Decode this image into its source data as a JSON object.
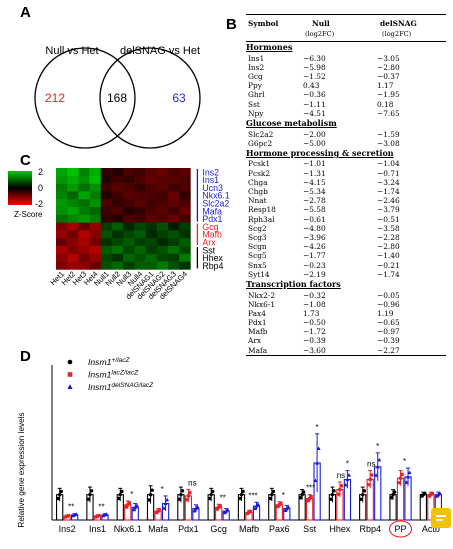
{
  "panels": {
    "a": "A",
    "b": "B",
    "c": "C",
    "d": "D"
  },
  "venn": {
    "left_title": "Null vs Het",
    "right_title": "delSNAG vs Het",
    "left_only": "212",
    "overlap": "168",
    "right_only": "63",
    "colors": {
      "left_only": "#e8212a",
      "overlap": "#000000",
      "right_only": "#2b2bd6"
    }
  },
  "heatmap": {
    "scale": {
      "title": "Z-Score",
      "ticks": [
        "2",
        "0",
        "-2"
      ]
    },
    "columns": [
      "Het1",
      "Het2",
      "Het3",
      "Het4",
      "Null1",
      "Null2",
      "Null3",
      "Null4",
      "delSNAG1",
      "delSNAG2",
      "delSNAG3",
      "delSNAG4"
    ],
    "genes": [
      {
        "name": "Ins2",
        "color": "#1a1ad6"
      },
      {
        "name": "Ins1",
        "color": "#1a1ad6"
      },
      {
        "name": "Ucn3",
        "color": "#1a1ad6"
      },
      {
        "name": "Nkx6.1",
        "color": "#1a1ad6"
      },
      {
        "name": "Slc2a2",
        "color": "#1a1ad6"
      },
      {
        "name": "Mafa",
        "color": "#1a1ad6"
      },
      {
        "name": "Pdx1",
        "color": "#1a1ad6"
      },
      {
        "name": "Gcg",
        "color": "#e8212a"
      },
      {
        "name": "Mafb",
        "color": "#e8212a"
      },
      {
        "name": "Arx",
        "color": "#e8212a"
      },
      {
        "name": "Sst",
        "color": "#000000"
      },
      {
        "name": "Hhex",
        "color": "#000000"
      },
      {
        "name": "Rbp4",
        "color": "#000000"
      }
    ],
    "groups": [
      {
        "from": 0,
        "to": 6,
        "color": "#1a1ad6"
      },
      {
        "from": 7,
        "to": 9,
        "color": "#e8212a"
      },
      {
        "from": 10,
        "to": 12,
        "color": "#000000"
      }
    ],
    "values": [
      [
        1.6,
        1.9,
        1.3,
        1.7,
        -0.4,
        -0.3,
        -0.6,
        -0.5,
        -0.7,
        -0.8,
        -0.6,
        -0.7
      ],
      [
        1.5,
        1.7,
        1.4,
        1.8,
        -0.3,
        -0.5,
        -0.4,
        -0.6,
        -0.8,
        -0.7,
        -0.7,
        -0.6
      ],
      [
        1.2,
        1.5,
        1.1,
        1.4,
        -0.5,
        -0.7,
        -0.6,
        -0.4,
        -0.6,
        -0.7,
        -0.5,
        -0.6
      ],
      [
        1.3,
        1.0,
        1.6,
        1.2,
        -0.3,
        -0.5,
        -0.7,
        -0.6,
        -0.6,
        -0.5,
        -0.8,
        -0.4
      ],
      [
        1.5,
        1.3,
        1.1,
        1.4,
        -0.6,
        -0.4,
        -0.5,
        -0.7,
        -0.5,
        -0.6,
        -0.7,
        -0.6
      ],
      [
        1.4,
        1.6,
        1.2,
        1.0,
        -0.5,
        -0.6,
        -0.3,
        -0.4,
        -0.6,
        -0.7,
        -0.5,
        -0.8
      ],
      [
        1.1,
        1.3,
        1.5,
        1.2,
        -0.4,
        -0.3,
        -0.6,
        -0.5,
        -0.7,
        -0.6,
        -0.8,
        -0.5
      ],
      [
        -1.0,
        -1.3,
        -0.8,
        -1.2,
        0.6,
        0.9,
        0.4,
        0.7,
        0.5,
        0.8,
        0.3,
        0.6
      ],
      [
        -1.2,
        -0.9,
        -1.4,
        -1.0,
        0.8,
        0.5,
        0.7,
        0.9,
        0.4,
        0.6,
        0.8,
        0.5
      ],
      [
        -0.8,
        -1.1,
        -1.3,
        -0.9,
        0.5,
        0.7,
        0.9,
        0.6,
        0.7,
        0.4,
        0.6,
        0.9
      ],
      [
        -1.3,
        -1.0,
        -1.2,
        -1.4,
        0.9,
        1.1,
        0.7,
        1.0,
        0.6,
        0.8,
        1.1,
        0.7
      ],
      [
        -1.1,
        -1.4,
        -0.9,
        -1.2,
        0.7,
        0.5,
        1.0,
        0.8,
        1.0,
        0.7,
        0.6,
        1.2
      ],
      [
        -1.0,
        -1.2,
        -1.1,
        -0.8,
        0.8,
        1.0,
        0.6,
        0.9,
        0.9,
        1.2,
        0.8,
        0.5
      ]
    ]
  },
  "table": {
    "headers": {
      "symbol": "Symbol",
      "null": "Null",
      "null_sub": "(log2FC)",
      "del": "delSNAG",
      "del_sub": "(log2FC)"
    },
    "sections": [
      {
        "title": "Hormones",
        "rows": [
          {
            "symbol": "Ins1",
            "null": "−6.30",
            "del": "−3.05"
          },
          {
            "symbol": "Ins2",
            "null": "−5.98",
            "del": "−2.80"
          },
          {
            "symbol": "Gcg",
            "null": "−1.52",
            "del": "−0.37"
          },
          {
            "symbol": "Ppy",
            "null": "0.43",
            "del": "1.17"
          },
          {
            "symbol": "Ghrl",
            "null": "−0.36",
            "del": "−1.95"
          },
          {
            "symbol": "Sst",
            "null": "−1.11",
            "del": "0.18"
          },
          {
            "symbol": "Npy",
            "null": "−4.51",
            "del": "−7.65"
          }
        ]
      },
      {
        "title": "Glucose metabolism",
        "rows": [
          {
            "symbol": "Slc2a2",
            "null": "−2.00",
            "del": "−1.59"
          },
          {
            "symbol": "G6pc2",
            "null": "−5.00",
            "del": "−3.08"
          }
        ]
      },
      {
        "title": "Hormone processing & secretion",
        "rows": [
          {
            "symbol": "Pcsk1",
            "null": "−1.01",
            "del": "−1.04"
          },
          {
            "symbol": "Pcsk2",
            "null": "−1.31",
            "del": "−0.71"
          },
          {
            "symbol": "Chga",
            "null": "−4.15",
            "del": "−3.24"
          },
          {
            "symbol": "Chgb",
            "null": "−5.34",
            "del": "−1.74"
          },
          {
            "symbol": "Nnat",
            "null": "−2.78",
            "del": "−2.46"
          },
          {
            "symbol": "Resp18",
            "null": "−5.58",
            "del": "−3.79"
          },
          {
            "symbol": "Rph3al",
            "null": "−0.61",
            "del": "−0.51"
          },
          {
            "symbol": "Scg2",
            "null": "−4.80",
            "del": "−3.58"
          },
          {
            "symbol": "Scg3",
            "null": "−3.96",
            "del": "−2.28"
          },
          {
            "symbol": "Scgn",
            "null": "−4.26",
            "del": "−2.80"
          },
          {
            "symbol": "Scg5",
            "null": "−1.77",
            "del": "−1.40"
          },
          {
            "symbol": "Snx5",
            "null": "−0.23",
            "del": "−0.21"
          },
          {
            "symbol": "Syt14",
            "null": "−2.19",
            "del": "−1.74"
          }
        ]
      },
      {
        "title": "Transcription factors",
        "rows": [
          {
            "symbol": "Nkx2-2",
            "null": "−0.32",
            "del": "−0.05"
          },
          {
            "symbol": "Nkx6-1",
            "null": "−1.08",
            "del": "−0.96"
          },
          {
            "symbol": "Pax4",
            "null": "1.73",
            "del": "1.19"
          },
          {
            "symbol": "Pdx1",
            "null": "−0.50",
            "del": "−0.65"
          },
          {
            "symbol": "Mafb",
            "null": "−1.72",
            "del": "−0.97"
          },
          {
            "symbol": "Arx",
            "null": "−0.39",
            "del": "−0.39"
          },
          {
            "symbol": "Mafa",
            "null": "−3.60",
            "del": "−2.27"
          }
        ]
      }
    ]
  },
  "chart_data": {
    "type": "bar",
    "title": "",
    "xlabel": "",
    "ylabel": "Relative gene expression levels",
    "ylim": [
      0,
      6
    ],
    "categories": [
      "Ins2",
      "Ins1",
      "Nkx6.1",
      "Mafa",
      "Pdx1",
      "Gcg",
      "Mafb",
      "Pax6",
      "Sst",
      "Hhex",
      "Rbp4",
      "PP",
      "Actb"
    ],
    "highlight_category": "PP",
    "colors": [
      "#000000",
      "#e8212a",
      "#1a1ad6"
    ],
    "legend": [
      {
        "base": "Insm1",
        "sup": "+/lacZ"
      },
      {
        "base": "Insm1",
        "sup": "lacZ/lacZ"
      },
      {
        "base": "Insm1",
        "sup": "delSNAG/lacZ"
      }
    ],
    "series": [
      {
        "values": [
          1.0,
          1.0,
          1.0,
          1.0,
          1.0,
          1.0,
          1.0,
          1.0,
          1.0,
          1.0,
          1.0,
          1.0,
          1.0
        ],
        "errors": [
          0.25,
          0.3,
          0.25,
          0.35,
          0.3,
          0.25,
          0.25,
          0.25,
          0.2,
          0.3,
          0.3,
          0.2,
          0.1
        ]
      },
      {
        "values": [
          0.15,
          0.15,
          0.6,
          0.35,
          0.95,
          0.5,
          0.3,
          0.6,
          0.85,
          1.2,
          1.6,
          1.65,
          1.0
        ],
        "errors": [
          0.05,
          0.05,
          0.15,
          0.1,
          0.25,
          0.12,
          0.08,
          0.12,
          0.15,
          0.3,
          0.35,
          0.3,
          0.1
        ]
      },
      {
        "values": [
          0.2,
          0.2,
          0.5,
          0.65,
          0.45,
          0.35,
          0.55,
          0.45,
          2.25,
          1.6,
          2.1,
          1.7,
          1.0
        ],
        "errors": [
          0.05,
          0.05,
          0.15,
          0.3,
          0.15,
          0.1,
          0.15,
          0.12,
          1.15,
          0.35,
          0.55,
          0.35,
          0.1
        ]
      }
    ],
    "annotations": [
      {
        "category": 0,
        "text": "**"
      },
      {
        "category": 1,
        "text": "**"
      },
      {
        "category": 2,
        "text": "*"
      },
      {
        "category": 3,
        "text": "*"
      },
      {
        "category": 4,
        "text": "ns"
      },
      {
        "category": 5,
        "text": "**"
      },
      {
        "category": 6,
        "text": "***"
      },
      {
        "category": 7,
        "text": "*"
      },
      {
        "category": 8,
        "text": "***"
      },
      {
        "category": 8,
        "text": "*"
      },
      {
        "category": 9,
        "text": "ns"
      },
      {
        "category": 9,
        "text": "*"
      },
      {
        "category": 10,
        "text": "ns"
      },
      {
        "category": 10,
        "text": "*"
      },
      {
        "category": 11,
        "text": "*"
      }
    ]
  }
}
